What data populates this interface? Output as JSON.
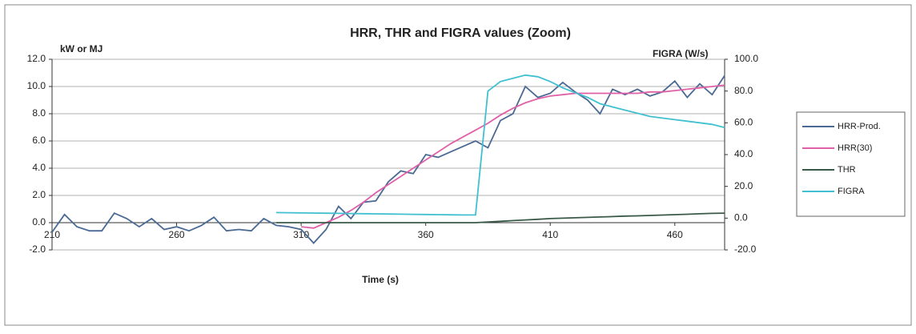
{
  "chart_data": {
    "type": "line",
    "title": "HRR, THR and FIGRA values (Zoom)",
    "ylabel": "kW or MJ",
    "y2label": "FIGRA (W/s)",
    "xlabel": "Time (s)",
    "xlim": [
      210,
      480
    ],
    "xticks": [
      210,
      260,
      310,
      360,
      410,
      460
    ],
    "ylim": [
      -2,
      12
    ],
    "yticks": [
      {
        "value": -2,
        "label": "-2.0"
      },
      {
        "value": 0,
        "label": "0.0"
      },
      {
        "value": 2,
        "label": "2.0"
      },
      {
        "value": 4,
        "label": "4.0"
      },
      {
        "value": 6,
        "label": "6.0"
      },
      {
        "value": 8,
        "label": "8.0"
      },
      {
        "value": 10,
        "label": "10.0"
      },
      {
        "value": 12,
        "label": "12.0"
      }
    ],
    "y2lim": [
      -20,
      100
    ],
    "y2ticks": [
      {
        "value": -20,
        "label": "-20.0"
      },
      {
        "value": 0,
        "label": "0.0"
      },
      {
        "value": 20,
        "label": "20.0"
      },
      {
        "value": 40,
        "label": "40.0"
      },
      {
        "value": 60,
        "label": "60.0"
      },
      {
        "value": 80,
        "label": "80.0"
      },
      {
        "value": 100,
        "label": "100.0"
      }
    ],
    "grid": true,
    "legend": "right",
    "x": [
      210,
      215,
      220,
      225,
      230,
      235,
      240,
      245,
      250,
      255,
      260,
      265,
      270,
      275,
      280,
      285,
      290,
      295,
      300,
      305,
      310,
      315,
      320,
      325,
      330,
      335,
      340,
      345,
      350,
      355,
      360,
      365,
      370,
      375,
      380,
      385,
      390,
      395,
      400,
      405,
      410,
      415,
      420,
      425,
      430,
      435,
      440,
      445,
      450,
      455,
      460,
      465,
      470,
      475,
      480
    ],
    "series": [
      {
        "name": "HRR-Prod.",
        "color": "#4a6a94",
        "values": [
          -0.7,
          0.6,
          -0.3,
          -0.6,
          -0.6,
          0.7,
          0.3,
          -0.3,
          0.3,
          -0.5,
          -0.3,
          -0.6,
          -0.2,
          0.4,
          -0.6,
          -0.5,
          -0.6,
          0.3,
          -0.2,
          -0.3,
          -0.5,
          -1.5,
          -0.5,
          1.2,
          0.3,
          1.5,
          1.6,
          3.0,
          3.8,
          3.6,
          5.0,
          4.8,
          5.2,
          5.6,
          6.0,
          5.5,
          7.5,
          8.0,
          10.0,
          9.2,
          9.5,
          10.3,
          9.6,
          9.0,
          8.0,
          9.8,
          9.4,
          9.8,
          9.3,
          9.6,
          10.4,
          9.2,
          10.2,
          9.4,
          10.8
        ]
      },
      {
        "name": "HRR(30)",
        "color": "#e060a8",
        "values": [
          null,
          null,
          null,
          null,
          null,
          null,
          null,
          null,
          null,
          null,
          null,
          null,
          null,
          null,
          null,
          null,
          null,
          null,
          null,
          null,
          -0.3,
          -0.4,
          0.0,
          0.4,
          0.9,
          1.5,
          2.2,
          2.8,
          3.4,
          4.0,
          4.6,
          5.2,
          5.8,
          6.3,
          6.8,
          7.3,
          7.9,
          8.4,
          8.8,
          9.1,
          9.3,
          9.4,
          9.5,
          9.5,
          9.5,
          9.5,
          9.5,
          9.5,
          9.6,
          9.6,
          9.7,
          9.8,
          9.9,
          10.0,
          10.1
        ]
      },
      {
        "name": "THR",
        "color": "#3a5a48",
        "values": [
          null,
          null,
          null,
          null,
          null,
          null,
          null,
          null,
          null,
          null,
          null,
          null,
          null,
          null,
          null,
          null,
          null,
          null,
          0,
          0,
          0,
          0,
          0,
          0,
          0,
          0,
          0,
          0,
          0,
          0,
          0,
          0,
          0,
          0,
          0,
          0.05,
          0.1,
          0.15,
          0.2,
          0.25,
          0.3,
          0.33,
          0.36,
          0.39,
          0.42,
          0.45,
          0.48,
          0.5,
          0.53,
          0.56,
          0.59,
          0.62,
          0.65,
          0.68,
          0.7
        ]
      },
      {
        "name": "FIGRA",
        "color": "#40c0d0",
        "axis": "y2",
        "values": [
          null,
          null,
          null,
          null,
          null,
          null,
          null,
          null,
          null,
          null,
          null,
          null,
          null,
          null,
          null,
          null,
          null,
          null,
          3.5,
          3.4,
          3.3,
          3.2,
          3.1,
          3.0,
          2.9,
          2.8,
          2.7,
          2.6,
          2.5,
          2.4,
          2.3,
          2.2,
          2.1,
          2.0,
          2.0,
          80,
          86,
          88,
          90,
          89,
          86,
          82,
          79,
          76,
          72,
          70,
          68,
          66,
          64,
          63,
          62,
          61,
          60,
          59,
          57
        ]
      }
    ]
  }
}
